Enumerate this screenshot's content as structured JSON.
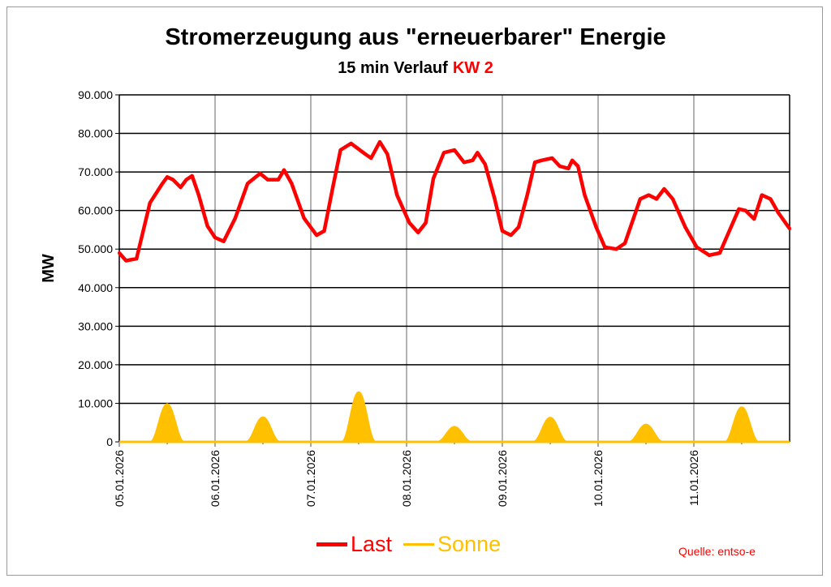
{
  "title": "Stromerzeugung aus \"erneuerbarer\" Energie",
  "subtitle": "15 min Verlauf",
  "subtitle_highlight": "KW 2",
  "source": "Quelle: entso-e",
  "chart_data": {
    "type": "line",
    "title": "Stromerzeugung aus \"erneuerbarer\" Energie",
    "ylabel": "MW",
    "xlabel": "",
    "ylim": [
      0,
      90000
    ],
    "yticks": [
      "0",
      "10.000",
      "20.000",
      "30.000",
      "40.000",
      "50.000",
      "60.000",
      "70.000",
      "80.000",
      "90.000"
    ],
    "xticks": [
      "05.01.2026",
      "06.01.2026",
      "07.01.2026",
      "08.01.2026",
      "09.01.2026",
      "10.01.2026",
      "11.01.2026"
    ],
    "xlim_days": [
      0,
      7
    ],
    "grid": true,
    "legend": "bottom",
    "colors": {
      "Last": "#ff0000",
      "Sonne": "#ffc000"
    },
    "series": [
      {
        "name": "Last",
        "x_days": [
          0,
          0.07,
          0.18,
          0.32,
          0.45,
          0.5,
          0.56,
          0.64,
          0.7,
          0.76,
          0.83,
          0.92,
          1.0,
          1.09,
          1.21,
          1.34,
          1.47,
          1.55,
          1.66,
          1.72,
          1.8,
          1.93,
          2.06,
          2.14,
          2.23,
          2.31,
          2.42,
          2.57,
          2.63,
          2.72,
          2.8,
          2.9,
          3.03,
          3.12,
          3.2,
          3.28,
          3.39,
          3.5,
          3.6,
          3.69,
          3.74,
          3.82,
          3.92,
          4.0,
          4.09,
          4.17,
          4.26,
          4.34,
          4.41,
          4.52,
          4.6,
          4.69,
          4.73,
          4.79,
          4.86,
          4.98,
          5.07,
          5.19,
          5.28,
          5.44,
          5.53,
          5.61,
          5.69,
          5.78,
          5.91,
          6.03,
          6.16,
          6.27,
          6.37,
          6.47,
          6.54,
          6.63,
          6.71,
          6.8,
          6.88,
          7.0
        ],
        "values": [
          49000,
          47000,
          47500,
          62000,
          67000,
          68700,
          68000,
          66000,
          68000,
          69000,
          64000,
          56000,
          53000,
          52000,
          58000,
          67000,
          69600,
          68000,
          68000,
          70500,
          67000,
          58000,
          53600,
          54700,
          66000,
          75700,
          77400,
          74600,
          73600,
          77800,
          74600,
          64000,
          56800,
          54300,
          56800,
          68300,
          75000,
          75700,
          72500,
          73000,
          75000,
          72000,
          63000,
          54700,
          53600,
          55700,
          64000,
          72500,
          73000,
          73600,
          71500,
          70900,
          73000,
          71500,
          64000,
          55700,
          50500,
          50000,
          51500,
          63000,
          64000,
          63000,
          65600,
          63000,
          55700,
          50500,
          48400,
          49000,
          54700,
          60400,
          60000,
          57800,
          64000,
          63000,
          59500,
          55300
        ]
      },
      {
        "name": "Sonne",
        "peak_day_offset": 0.5,
        "peaks": [
          9700,
          6300,
          12800,
          3800,
          6200,
          4400,
          8900
        ]
      }
    ]
  }
}
